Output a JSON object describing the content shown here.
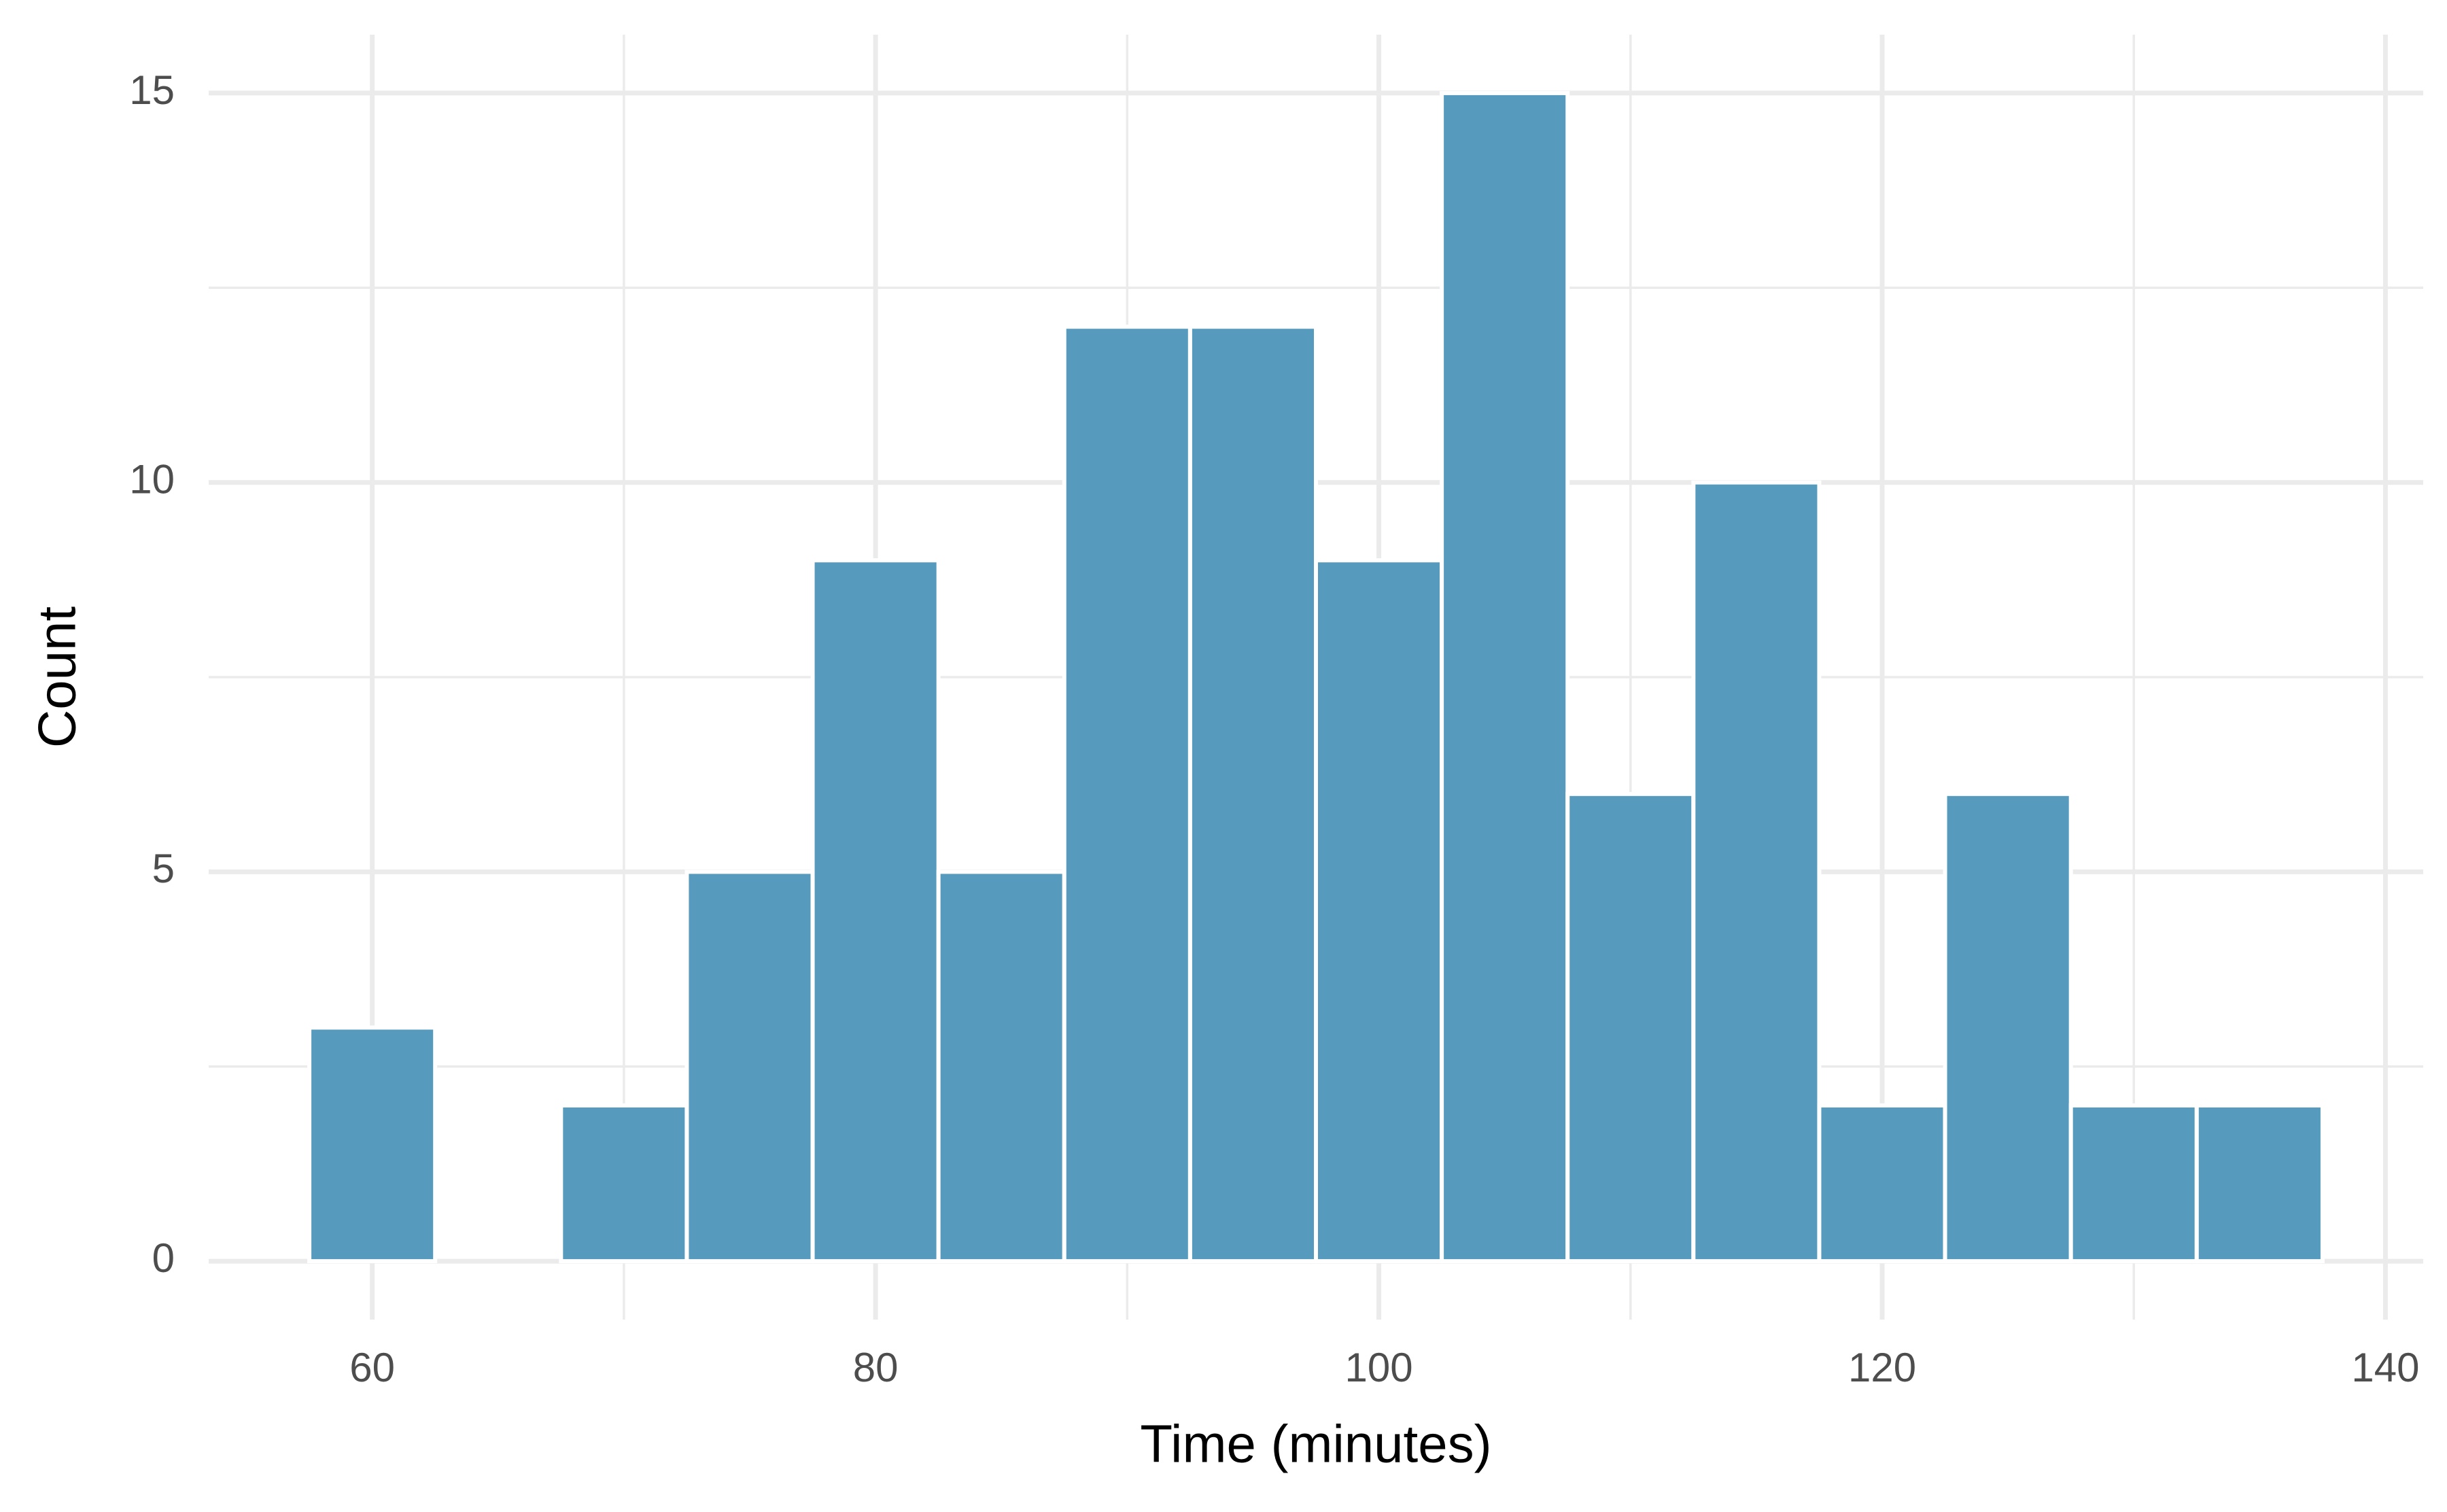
{
  "chart_data": {
    "type": "histogram",
    "x_label": "Time (minutes)",
    "y_label": "Count",
    "bins": [
      57.5,
      62.5,
      67.5,
      72.5,
      77.5,
      82.5,
      87.5,
      92.5,
      97.5,
      102.5,
      107.5,
      112.5,
      117.5,
      122.5,
      127.5,
      132.5,
      137.5
    ],
    "values": [
      3,
      0,
      2,
      5,
      9,
      5,
      12,
      12,
      9,
      15,
      6,
      10,
      2,
      6,
      2,
      2
    ],
    "color": "#569bbd",
    "xlim": [
      53.5,
      141.5
    ],
    "xticks": [
      60,
      80,
      100,
      120,
      140
    ],
    "x_minor_ticks": [
      70,
      90,
      110,
      130
    ],
    "ylim": [
      -0.75,
      15.75
    ],
    "yticks": [
      0,
      5,
      10,
      15
    ],
    "y_minor_ticks": [
      2.5,
      7.5,
      12.5
    ],
    "grid": true
  }
}
